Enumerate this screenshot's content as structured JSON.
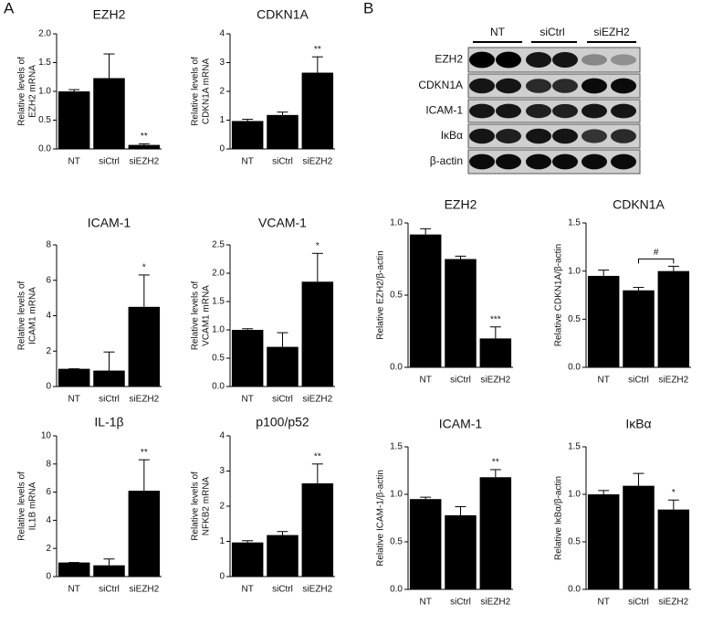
{
  "panels": [
    "A",
    "B"
  ],
  "blot": {
    "groups": [
      "NT",
      "siCtrl",
      "siEZH2"
    ],
    "rows": [
      "EZH2",
      "CDKN1A",
      "ICAM-1",
      "IκBα",
      "β-actin"
    ]
  },
  "chart_data": [
    {
      "type": "bar",
      "title": "EZH2",
      "ylabel": [
        "Relative levels of",
        "EZH2 mRNA"
      ],
      "categories": [
        "NT",
        "siCtrl",
        "siEZH2"
      ],
      "values": [
        1.0,
        1.23,
        0.07
      ],
      "errors": [
        0.03,
        0.42,
        0.02
      ],
      "annotations": [
        null,
        null,
        "**"
      ],
      "color": "#000000",
      "ylim": [
        0,
        2.0
      ],
      "yticks": [
        {
          "value": 0,
          "label": "0.0"
        },
        0.5,
        {
          "value": 1,
          "label": "1.0"
        },
        1.5,
        {
          "value": 2,
          "label": "2.0"
        }
      ]
    },
    {
      "type": "bar",
      "title": "CDKN1A",
      "ylabel": [
        "Relative levels of",
        "CDKN1A mRNA"
      ],
      "categories": [
        "NT",
        "siCtrl",
        "siEZH2"
      ],
      "values": [
        0.97,
        1.18,
        2.65
      ],
      "errors": [
        0.06,
        0.1,
        0.55
      ],
      "annotations": [
        null,
        null,
        "**"
      ],
      "color": "#000000",
      "ylim": [
        0,
        4
      ],
      "yticks": [
        0,
        1,
        2,
        3,
        4
      ]
    },
    {
      "type": "bar",
      "title": "ICAM-1",
      "ylabel": [
        "Relative levels of",
        "ICAM1 mRNA"
      ],
      "categories": [
        "NT",
        "siCtrl",
        "siEZH2"
      ],
      "values": [
        1.0,
        0.9,
        4.5
      ],
      "errors": [
        0,
        1.05,
        1.8
      ],
      "annotations": [
        null,
        null,
        "*"
      ],
      "color": "#000000",
      "ylim": [
        0,
        8
      ],
      "yticks": [
        0,
        2,
        4,
        6,
        8
      ]
    },
    {
      "type": "bar",
      "title": "VCAM-1",
      "ylabel": [
        "Relative levels of",
        "VCAM1 mRNA"
      ],
      "categories": [
        "NT",
        "siCtrl",
        "siEZH2"
      ],
      "values": [
        1.0,
        0.7,
        1.85
      ],
      "errors": [
        0.02,
        0.25,
        0.5
      ],
      "annotations": [
        null,
        null,
        "*"
      ],
      "color": "#000000",
      "ylim": [
        0,
        2.5
      ],
      "yticks": [
        {
          "value": 0,
          "label": "0.0"
        },
        0.5,
        {
          "value": 1,
          "label": "1.0"
        },
        1.5,
        {
          "value": 2,
          "label": "2.0"
        },
        2.5
      ]
    },
    {
      "type": "bar",
      "title": "IL-1β",
      "ylabel": [
        "Relative levels of",
        "IL1B mRNA"
      ],
      "categories": [
        "NT",
        "siCtrl",
        "siEZH2"
      ],
      "values": [
        1.0,
        0.8,
        6.1
      ],
      "errors": [
        0,
        0.45,
        2.2
      ],
      "annotations": [
        null,
        null,
        "**"
      ],
      "color": "#000000",
      "ylim": [
        0,
        10
      ],
      "yticks": [
        0,
        2,
        4,
        6,
        8,
        10
      ]
    },
    {
      "type": "bar",
      "title": "p100/p52",
      "ylabel": [
        "Relative levels of",
        "NFKB2 mRNA"
      ],
      "categories": [
        "NT",
        "siCtrl",
        "siEZH2"
      ],
      "values": [
        0.97,
        1.18,
        2.65
      ],
      "errors": [
        0.05,
        0.1,
        0.55
      ],
      "annotations": [
        null,
        null,
        "**"
      ],
      "color": "#000000",
      "ylim": [
        0,
        4
      ],
      "yticks": [
        0,
        1,
        2,
        3,
        4
      ]
    },
    {
      "type": "bar",
      "title": "EZH2",
      "ylabel": [
        "Relative EZH2/β-actin"
      ],
      "categories": [
        "NT",
        "siCtrl",
        "siEZH2"
      ],
      "values": [
        0.92,
        0.75,
        0.2
      ],
      "errors": [
        0.04,
        0.02,
        0.08
      ],
      "annotations": [
        null,
        null,
        "***"
      ],
      "color": "#000000",
      "ylim": [
        0,
        1.0
      ],
      "yticks": [
        {
          "value": 0,
          "label": "0.0"
        },
        0.5,
        {
          "value": 1,
          "label": "1.0"
        }
      ]
    },
    {
      "type": "bar",
      "title": "CDKN1A",
      "ylabel": [
        "Relative CDKN1A/β-actin"
      ],
      "categories": [
        "NT",
        "siCtrl",
        "siEZH2"
      ],
      "values": [
        0.95,
        0.8,
        1.0
      ],
      "errors": [
        0.06,
        0.03,
        0.05
      ],
      "annotations": [
        null,
        null,
        null
      ],
      "color": "#000000",
      "comparison": {
        "between": [
          "siCtrl",
          "siEZH2"
        ],
        "label": "#"
      },
      "ylim": [
        0,
        1.5
      ],
      "yticks": [
        {
          "value": 0,
          "label": "0.0"
        },
        0.5,
        {
          "value": 1,
          "label": "1.0"
        },
        1.5
      ]
    },
    {
      "type": "bar",
      "title": "ICAM-1",
      "ylabel": [
        "Relative ICAM-1/β-actin"
      ],
      "categories": [
        "NT",
        "siCtrl",
        "siEZH2"
      ],
      "values": [
        0.95,
        0.78,
        1.18
      ],
      "errors": [
        0.02,
        0.09,
        0.08
      ],
      "annotations": [
        null,
        null,
        "**"
      ],
      "color": "#000000",
      "ylim": [
        0,
        1.5
      ],
      "yticks": [
        {
          "value": 0,
          "label": "0.0"
        },
        0.5,
        {
          "value": 1,
          "label": "1.0"
        },
        1.5
      ]
    },
    {
      "type": "bar",
      "title": "IκBα",
      "ylabel": [
        "Relative IκBα/β-actin"
      ],
      "categories": [
        "NT",
        "siCtrl",
        "siEZH2"
      ],
      "values": [
        1.0,
        1.09,
        0.84
      ],
      "errors": [
        0.04,
        0.13,
        0.1
      ],
      "annotations": [
        null,
        null,
        "*"
      ],
      "color": "#000000",
      "ylim": [
        0,
        1.5
      ],
      "yticks": [
        {
          "value": 0,
          "label": "0.0"
        },
        0.5,
        {
          "value": 1,
          "label": "1.0"
        },
        1.5
      ]
    }
  ]
}
